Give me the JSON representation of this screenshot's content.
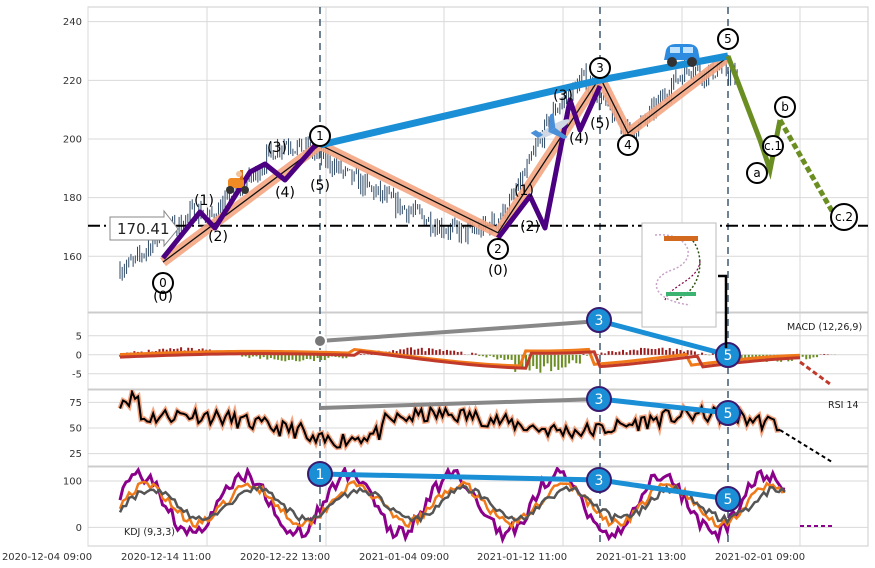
{
  "chart_data": {
    "type": "line",
    "subtype": "candlestick with Elliott wave annotations and indicator panels",
    "x_tick_labels": [
      "2020-12-04 09:00",
      "2020-12-14 11:00",
      "2020-12-22 13:00",
      "2021-01-04 09:00",
      "2021-01-12 11:00",
      "2021-01-21 13:00",
      "2021-02-01 09:00"
    ],
    "price_axis": {
      "ylim": [
        141,
        245
      ],
      "ticks": [
        160,
        180,
        200,
        220,
        240
      ]
    },
    "reference_line": {
      "value": 170.41,
      "label": "170.41"
    },
    "price_path": [
      156,
      158,
      164,
      169,
      171,
      176,
      173,
      178,
      184,
      188,
      195,
      199,
      197,
      195,
      192,
      188,
      185,
      182,
      179,
      176,
      174,
      171,
      169,
      168,
      169,
      172,
      178,
      188,
      200,
      210,
      216,
      221,
      214,
      207,
      202,
      206,
      213,
      220,
      225,
      222,
      224,
      221,
      216,
      211,
      206,
      203,
      198,
      194,
      196
    ],
    "waves": {
      "primary": [
        {
          "label": "0",
          "value": 152
        },
        {
          "label": "1",
          "value": 201
        },
        {
          "label": "2",
          "value": 165
        },
        {
          "label": "3",
          "value": 224
        },
        {
          "label": "4",
          "value": 200
        },
        {
          "label": "5",
          "value": 234
        },
        {
          "label": "a",
          "value": 185
        },
        {
          "label": "b",
          "value": 210
        },
        {
          "label": "c.1",
          "value": 197
        },
        {
          "label": "c.2",
          "value": 171
        }
      ],
      "secondary": [
        "(0)",
        "(1)",
        "(2)",
        "(3)",
        "(4)",
        "(5)"
      ],
      "projection": [
        228,
        197,
        207,
        170
      ]
    },
    "macd": {
      "label": "MACD (12,26,9)",
      "ylim": [
        -9,
        11
      ],
      "ticks": [
        5,
        0,
        -5
      ]
    },
    "rsi": {
      "label": "RSI 14",
      "ylim": [
        13,
        87
      ],
      "ticks": [
        75,
        50,
        25
      ]
    },
    "kdj": {
      "label": "KDJ (9,3,3)",
      "ylim": [
        -40,
        130
      ],
      "ticks": [
        100,
        0
      ]
    },
    "divergence_markers": [
      "1",
      "3",
      "5"
    ],
    "colors": {
      "trend": "#1b8fd6",
      "wave": "#4b0082",
      "channel": "#f4a582",
      "correction": "#6b8e23",
      "macd_hist_pos": "#9b1c1c",
      "macd_hist_neg": "#6b8e23"
    },
    "icons": [
      "scooter-icon",
      "airplane-icon",
      "car-icon",
      "arrow-label"
    ]
  }
}
